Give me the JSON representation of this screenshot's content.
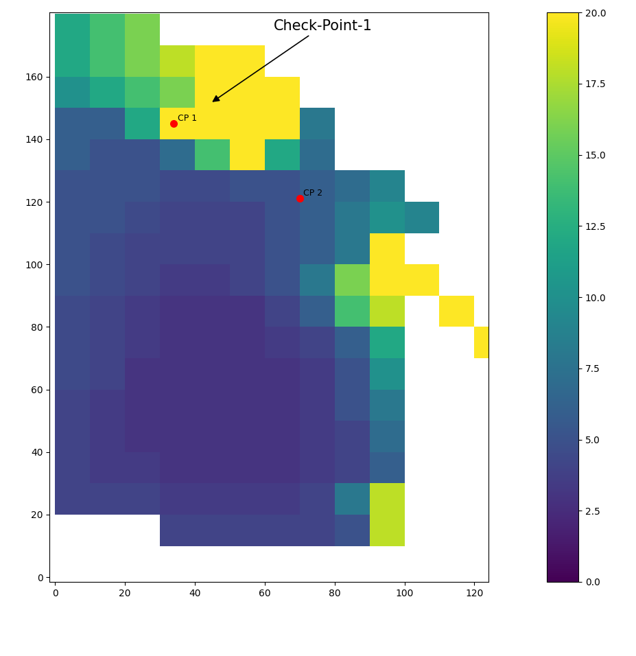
{
  "chart_data": {
    "type": "heatmap",
    "x_edges": [
      0,
      10,
      20,
      30,
      40,
      50,
      60,
      70,
      80,
      90,
      100,
      110,
      120,
      130
    ],
    "y_edges": [
      10,
      20,
      30,
      40,
      50,
      60,
      70,
      80,
      90,
      100,
      110,
      120,
      130,
      140,
      150,
      160,
      170,
      180
    ],
    "cells": [
      [
        null,
        null,
        null,
        4,
        4,
        4,
        4,
        4,
        5,
        18,
        null,
        null,
        null
      ],
      [
        4,
        4,
        4,
        3.5,
        3.5,
        3.5,
        3.5,
        4,
        8,
        18,
        null,
        null,
        null
      ],
      [
        4,
        3.5,
        3.5,
        3,
        3,
        3,
        3,
        3.5,
        4,
        6,
        null,
        null,
        null
      ],
      [
        4,
        3.5,
        3,
        3,
        3,
        3,
        3,
        3.5,
        4,
        7,
        null,
        null,
        null
      ],
      [
        4,
        3.5,
        3,
        3,
        3,
        3,
        3,
        3.5,
        5,
        8,
        null,
        null,
        null
      ],
      [
        4.5,
        4,
        3,
        3,
        3,
        3,
        3,
        3.5,
        5,
        10,
        null,
        null,
        null
      ],
      [
        4.5,
        4,
        3.5,
        3,
        3,
        3,
        3.5,
        4,
        6,
        12,
        null,
        null,
        20
      ],
      [
        4.5,
        4,
        3.5,
        3,
        3,
        3,
        4,
        6,
        14,
        18,
        null,
        20,
        null
      ],
      [
        5,
        4.5,
        4,
        3.5,
        3.5,
        4,
        5,
        8,
        16,
        20,
        20,
        null,
        null
      ],
      [
        5,
        4.5,
        4,
        4,
        4,
        4,
        5,
        6,
        8,
        20,
        null,
        null,
        null
      ],
      [
        5,
        5,
        4.5,
        4,
        4,
        4,
        5,
        6,
        8,
        10,
        9,
        null,
        null
      ],
      [
        5,
        5,
        5,
        4.5,
        4.5,
        5,
        5,
        6,
        7,
        9,
        null,
        null,
        null
      ],
      [
        6,
        5,
        5,
        7,
        14,
        20,
        12,
        7,
        null,
        null,
        null,
        null,
        null
      ],
      [
        6,
        6,
        12,
        20,
        20,
        20,
        20,
        8,
        null,
        null,
        null,
        null,
        null
      ],
      [
        10,
        12,
        14,
        16,
        20,
        20,
        20,
        null,
        null,
        null,
        null,
        null,
        null
      ],
      [
        12,
        14,
        16,
        18,
        20,
        20,
        null,
        null,
        null,
        null,
        null,
        null,
        null
      ],
      [
        12,
        14,
        16,
        null,
        null,
        null,
        null,
        null,
        null,
        null,
        null,
        null,
        null
      ]
    ],
    "xlim": [
      -1.5,
      124
    ],
    "ylim": [
      -1.5,
      180.5
    ],
    "xticks": [
      0,
      20,
      40,
      60,
      80,
      100,
      120
    ],
    "yticks": [
      0,
      20,
      40,
      60,
      80,
      100,
      120,
      140,
      160
    ],
    "colorbar_range": [
      0,
      20
    ],
    "colorbar_ticks": [
      {
        "value": 0,
        "label": "0.0"
      },
      {
        "value": 2.5,
        "label": "2.5"
      },
      {
        "value": 5,
        "label": "5.0"
      },
      {
        "value": 7.5,
        "label": "7.5"
      },
      {
        "value": 10,
        "label": "10.0"
      },
      {
        "value": 12.5,
        "label": "12.5"
      },
      {
        "value": 15,
        "label": "15.0"
      },
      {
        "value": 17.5,
        "label": "17.5"
      },
      {
        "value": 20,
        "label": "20.0"
      }
    ],
    "points": [
      {
        "name": "CP 1",
        "x": 34,
        "y": 145,
        "color": "red"
      },
      {
        "name": "CP 2",
        "x": 70,
        "y": 121,
        "color": "red"
      }
    ],
    "annotations": [
      {
        "text": "Check-Point-1",
        "x": 44.5,
        "y": 151.5
      }
    ]
  }
}
